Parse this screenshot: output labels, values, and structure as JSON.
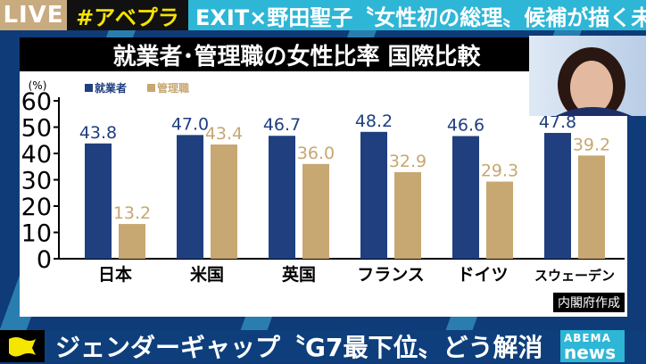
{
  "top": {
    "live": "LIVE",
    "tag": "#アベプラ",
    "headline": "EXIT×野田聖子〝女性初の総理〟候補が描く未来"
  },
  "title": "就業者･管理職の女性比率 国際比較",
  "source": "内閣府作成",
  "bottom": {
    "ticker": "ジェンダーギャップ〝G7最下位〟どう解消",
    "logo_top": "ABEMA",
    "logo_bottom": "news"
  },
  "chart_data": {
    "type": "bar",
    "ylabel": "(%)",
    "ylim": [
      0,
      60
    ],
    "yticks": [
      0,
      10,
      20,
      30,
      40,
      50,
      60
    ],
    "categories": [
      "日本",
      "米国",
      "英国",
      "フランス",
      "ドイツ",
      "スウェーデン"
    ],
    "series": [
      {
        "name": "就業者",
        "color": "#1f3f7f",
        "values": [
          43.8,
          47.0,
          46.7,
          48.2,
          46.6,
          47.8
        ],
        "labels": [
          "43.8",
          "47.0",
          "46.7",
          "48.2",
          "46.6",
          "47.8"
        ]
      },
      {
        "name": "管理職",
        "color": "#c7a772",
        "values": [
          13.2,
          43.4,
          36.0,
          32.9,
          29.3,
          39.2
        ],
        "labels": [
          "13.2",
          "43.4",
          "36.0",
          "32.9",
          "29.3",
          "39.2"
        ]
      }
    ],
    "legend": "top-left"
  }
}
